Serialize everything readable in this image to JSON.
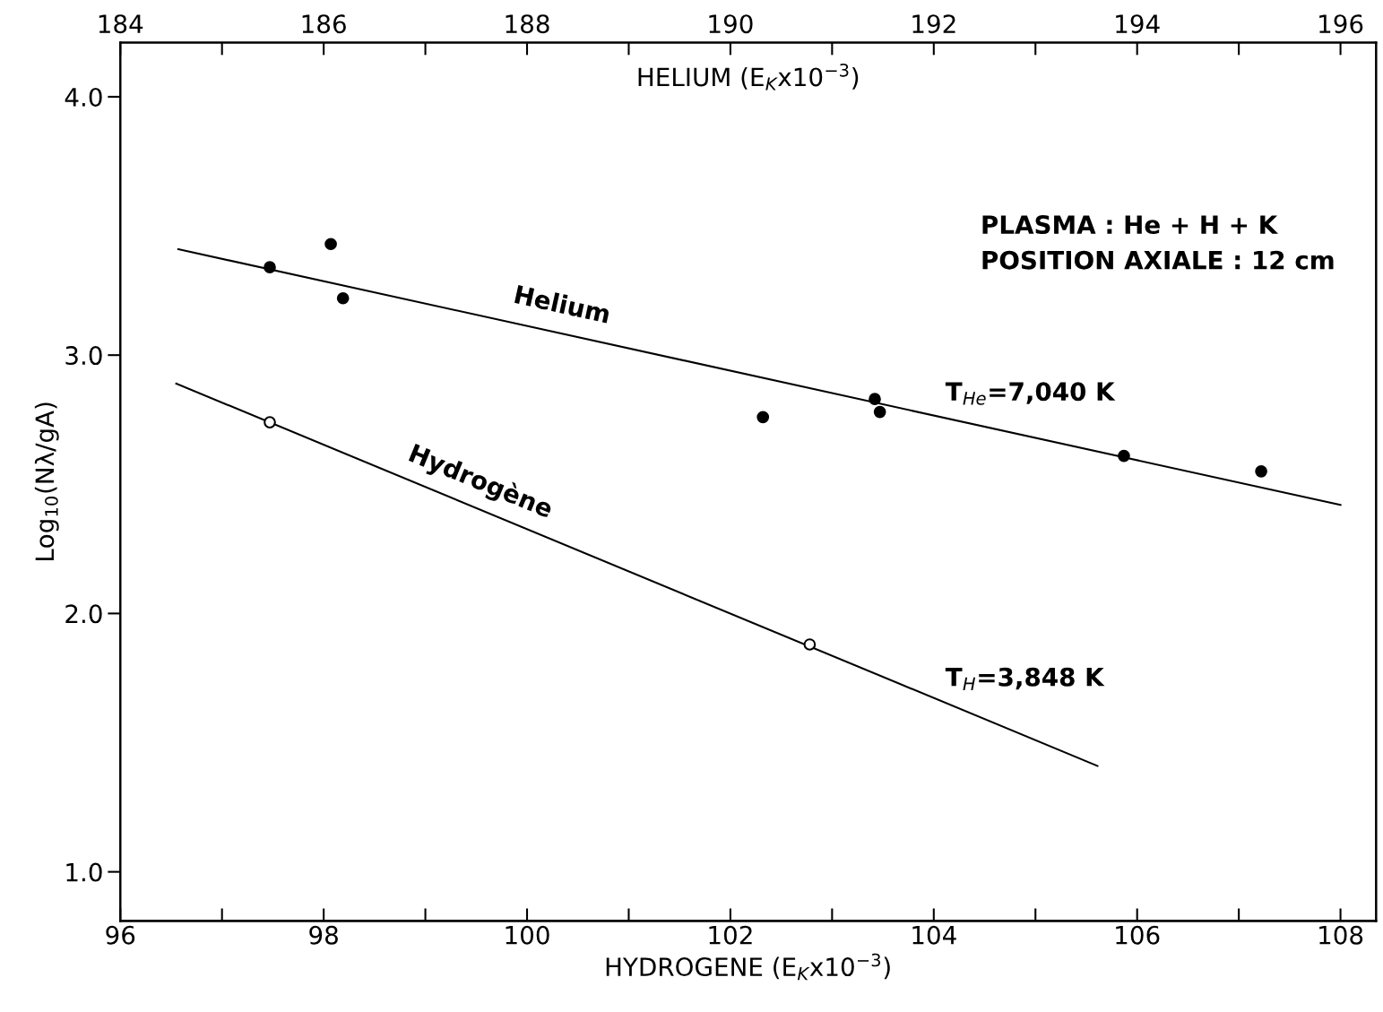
{
  "chart_data": {
    "type": "scatter",
    "xlabel": "HYDROGENE (E$_{K}$x10$^{−3}$)",
    "x2label": "HELIUM (E$_{K}$x10$^{−3}$)",
    "ylabel": "Log$_{10}$(Nλ/gA)",
    "xlim": [
      96,
      108.35
    ],
    "x2lim": [
      184,
      196.35
    ],
    "ylim": [
      0.81,
      4.21
    ],
    "xticks": [
      96,
      {
        "value": 97,
        "label": null
      },
      98,
      {
        "value": 99,
        "label": null
      },
      100,
      {
        "value": 101,
        "label": null
      },
      102,
      {
        "value": 103,
        "label": null
      },
      104,
      {
        "value": 105,
        "label": null
      },
      106,
      {
        "value": 107,
        "label": null
      },
      108
    ],
    "x2ticks": [
      184,
      {
        "value": 185,
        "label": null
      },
      186,
      {
        "value": 187,
        "label": null
      },
      188,
      {
        "value": 189,
        "label": null
      },
      190,
      {
        "value": 191,
        "label": null
      },
      192,
      {
        "value": 193,
        "label": null
      },
      194,
      {
        "value": 195,
        "label": null
      },
      196
    ],
    "yticks": [
      {
        "value": 1,
        "label": "1.0"
      },
      {
        "value": 2,
        "label": "2.0"
      },
      {
        "value": 3,
        "label": "3.0"
      },
      {
        "value": 4,
        "label": "4.0"
      }
    ],
    "grid": false,
    "legend": false,
    "series": [
      {
        "axis": "x2",
        "marker": "circle",
        "color": "#000000",
        "x": [
          185.47,
          186.07,
          186.19,
          190.32,
          191.42,
          191.47,
          193.87,
          195.22
        ],
        "values": [
          3.34,
          3.43,
          3.22,
          2.76,
          2.83,
          2.78,
          2.61,
          2.55
        ]
      },
      {
        "type": "line",
        "axis": "x2",
        "name": "Helium",
        "color": "#000000",
        "x": [
          184.57,
          196.0
        ],
        "values": [
          3.41,
          2.42
        ]
      },
      {
        "marker": "circle",
        "color": "#000000",
        "x": [
          97.47,
          102.78
        ],
        "values": [
          2.74,
          1.88
        ]
      },
      {
        "type": "line",
        "name": "Hydrogène",
        "color": "#000000",
        "x": [
          96.55,
          105.61
        ],
        "values": [
          2.89,
          1.41
        ]
      }
    ],
    "annotations": [
      "T$_{He}$=7,040 K",
      "T$_{H}$=3,848 K",
      "PLASMA : He + H + K\nPOSITION AXIALE : 12 cm"
    ]
  }
}
